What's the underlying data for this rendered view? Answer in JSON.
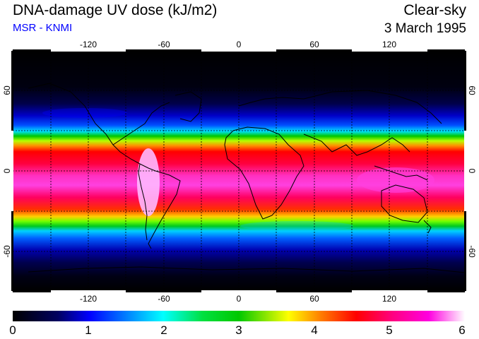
{
  "header": {
    "title": "DNA-damage UV dose (kJ/m2)",
    "subtitle": "MSR - KNMI",
    "condition": "Clear-sky",
    "date": "3 March 1995"
  },
  "map": {
    "projection": "equirectangular",
    "lon_range": [
      -180,
      180
    ],
    "lat_range": [
      -90,
      90
    ],
    "gridlines": true,
    "lon_ticks": [
      "-120",
      "-60",
      "0",
      "60",
      "120"
    ],
    "lat_ticks": [
      "60",
      "0",
      "-60"
    ]
  },
  "colorbar": {
    "range": [
      0,
      6
    ],
    "labels": [
      "0",
      "1",
      "2",
      "3",
      "4",
      "5",
      "6"
    ],
    "colors": [
      "#000000",
      "#00008b",
      "#0000ff",
      "#00e5ff",
      "#00c800",
      "#ffff00",
      "#ff0000",
      "#ff00c8",
      "#ffffff"
    ]
  }
}
